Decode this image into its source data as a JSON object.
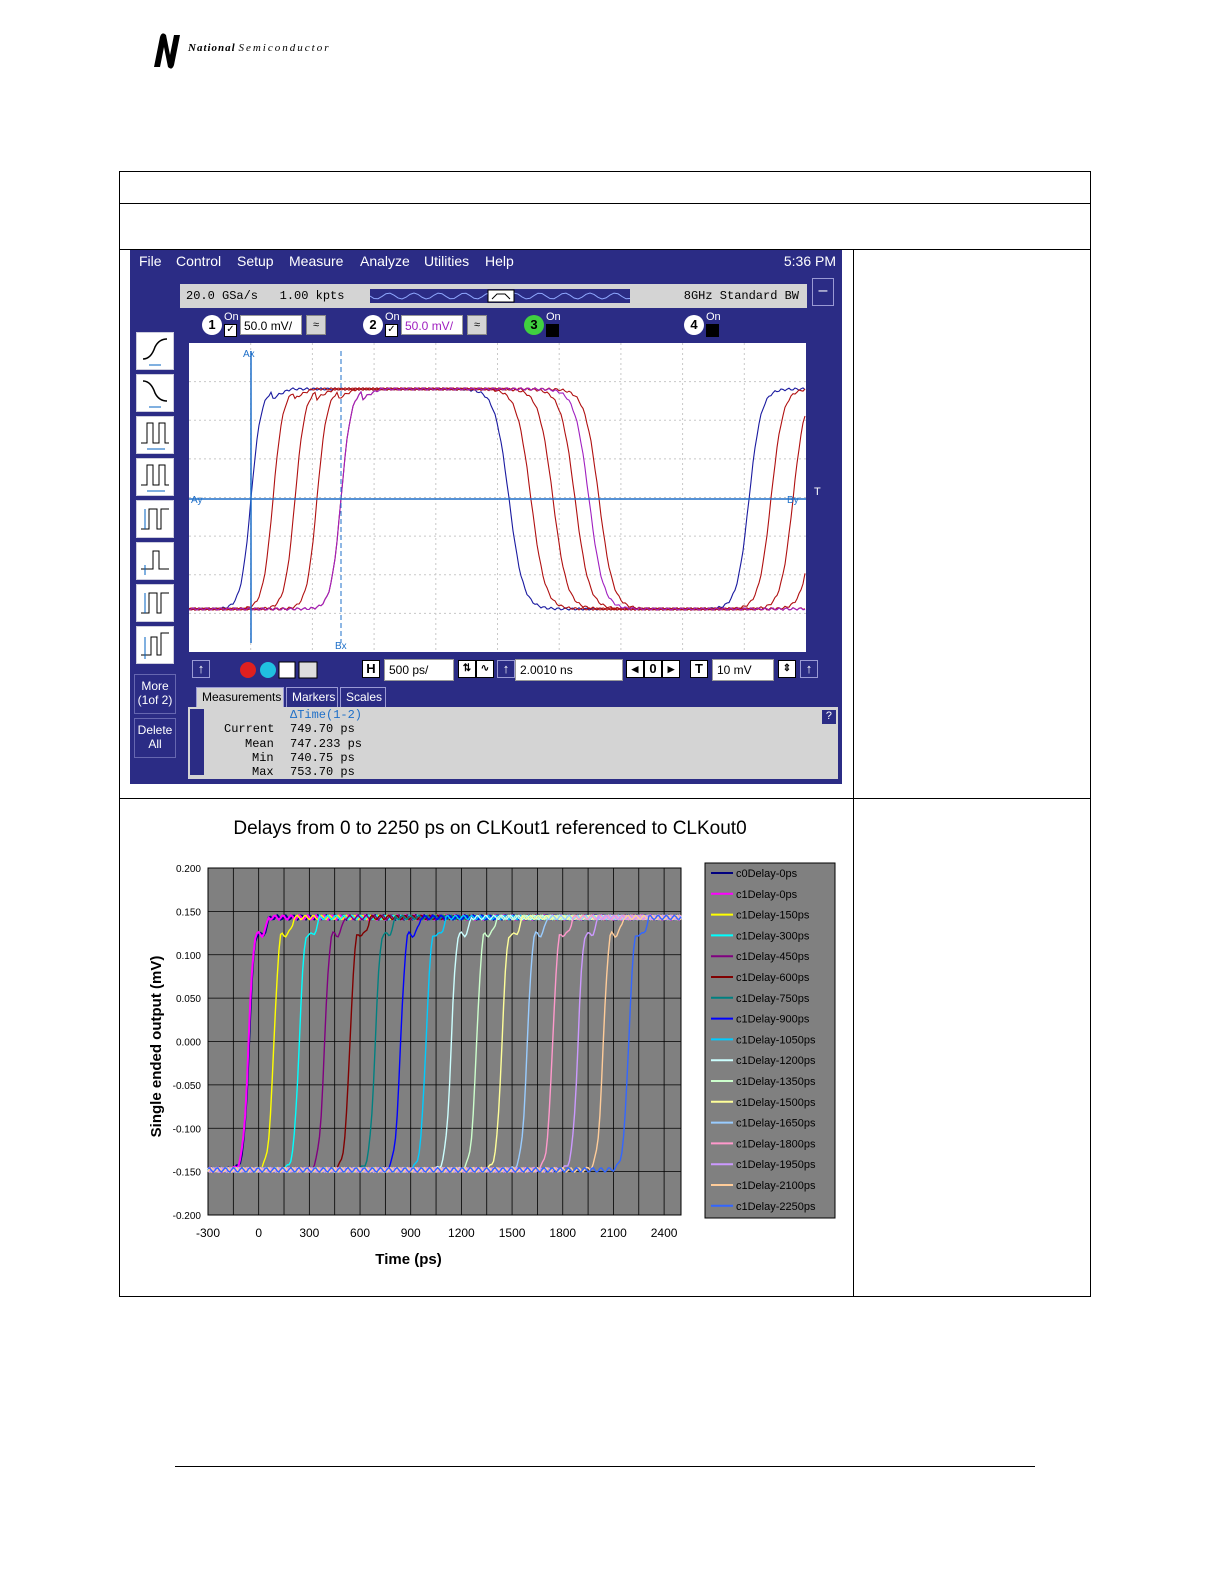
{
  "logo": {
    "brand_bold": "National",
    "brand_rest": "Semiconductor"
  },
  "scope": {
    "menu": [
      "File",
      "Control",
      "Setup",
      "Measure",
      "Analyze",
      "Utilities",
      "Help"
    ],
    "clock": "5:36 PM",
    "sample_rate": "20.0 GSa/s",
    "points": "1.00 kpts",
    "bandwidth": "8GHz Standard BW",
    "minimize": "–",
    "channels": [
      {
        "num": "1",
        "state": "On",
        "scale": "50.0 mV/",
        "color": "#ffffff",
        "checked": "✓"
      },
      {
        "num": "2",
        "state": "On",
        "scale": "50.0 mV/",
        "color": "#ffffff",
        "checked": "✓"
      },
      {
        "num": "3",
        "state": "On",
        "scale": "",
        "color": "#40d040",
        "checked": ""
      },
      {
        "num": "4",
        "state": "On",
        "scale": "",
        "color": "#ffffff",
        "checked": ""
      }
    ],
    "side_more_1": "More",
    "side_more_2": "(1of 2)",
    "side_delete_1": "Delete",
    "side_delete_2": "All",
    "markers": {
      "ax": "Ax",
      "bx": "Bx",
      "ay": "Ay",
      "by": "By",
      "t": "T"
    },
    "horizontal_label": "H",
    "horizontal_scale": "500 ps/",
    "delay": "2.0010 ns",
    "delay_ref": "0",
    "trigger_label": "T",
    "trigger_level": "10 mV",
    "tabs": [
      "Measurements",
      "Markers",
      "Scales"
    ],
    "help": "?",
    "measurement": {
      "name": "ΔTime(1-2)",
      "rows": [
        {
          "label": "Current",
          "value": "749.70 ps"
        },
        {
          "label": "Mean",
          "value": "747.233 ps"
        },
        {
          "label": "Min",
          "value": "740.75 ps"
        },
        {
          "label": "Max",
          "value": "753.70 ps"
        }
      ]
    },
    "waveform_colors": {
      "ch1": "#1a1aa0",
      "ch2": "#b01010",
      "ch2b": "#a020c0",
      "marker": "#1e6fc8",
      "grid": "#c8c8c8"
    }
  },
  "chart_data": {
    "type": "line",
    "title": "Delays from 0 to 2250 ps on CLKout1 referenced to CLKout0",
    "xlabel": "Time (ps)",
    "ylabel": "Single ended output (mV)",
    "xlim": [
      -300,
      2500
    ],
    "ylim": [
      -0.2,
      0.2
    ],
    "x_ticks": [
      "-300",
      "0",
      "300",
      "600",
      "900",
      "1200",
      "1500",
      "1800",
      "2100",
      "2400"
    ],
    "y_ticks": [
      "0.200",
      "0.150",
      "0.100",
      "0.050",
      "0.000",
      "-0.050",
      "-0.100",
      "-0.150",
      "-0.200"
    ],
    "grid": true,
    "legend_position": "right",
    "low_level": -0.148,
    "high_level": 0.143,
    "series": [
      {
        "name": "c0Delay-0ps",
        "delay": 0,
        "color": "#000080"
      },
      {
        "name": "c1Delay-0ps",
        "delay": 0,
        "color": "#ff00ff"
      },
      {
        "name": "c1Delay-150ps",
        "delay": 150,
        "color": "#ffff00"
      },
      {
        "name": "c1Delay-300ps",
        "delay": 300,
        "color": "#00ffff"
      },
      {
        "name": "c1Delay-450ps",
        "delay": 450,
        "color": "#800080"
      },
      {
        "name": "c1Delay-600ps",
        "delay": 600,
        "color": "#800000"
      },
      {
        "name": "c1Delay-750ps",
        "delay": 750,
        "color": "#008080"
      },
      {
        "name": "c1Delay-900ps",
        "delay": 900,
        "color": "#0000ff"
      },
      {
        "name": "c1Delay-1050ps",
        "delay": 1050,
        "color": "#00ccff"
      },
      {
        "name": "c1Delay-1200ps",
        "delay": 1200,
        "color": "#ccffff"
      },
      {
        "name": "c1Delay-1350ps",
        "delay": 1350,
        "color": "#ccffcc"
      },
      {
        "name": "c1Delay-1500ps",
        "delay": 1500,
        "color": "#ffff99"
      },
      {
        "name": "c1Delay-1650ps",
        "delay": 1650,
        "color": "#99ccff"
      },
      {
        "name": "c1Delay-1800ps",
        "delay": 1800,
        "color": "#ff99cc"
      },
      {
        "name": "c1Delay-1950ps",
        "delay": 1950,
        "color": "#cc99ff"
      },
      {
        "name": "c1Delay-2100ps",
        "delay": 2100,
        "color": "#ffcc99"
      },
      {
        "name": "c1Delay-2250ps",
        "delay": 2250,
        "color": "#3366ff"
      }
    ]
  }
}
